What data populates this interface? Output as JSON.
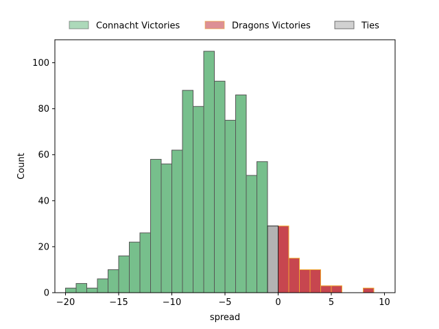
{
  "chart_data": {
    "type": "bar",
    "subtype": "histogram",
    "xlabel": "spread",
    "ylabel": "Count",
    "xlim": [
      -21,
      11
    ],
    "ylim": [
      0,
      110
    ],
    "xticks": [
      -20,
      -15,
      -10,
      -5,
      0,
      5,
      10
    ],
    "yticks": [
      0,
      20,
      40,
      60,
      80,
      100
    ],
    "grid": false,
    "legend_position": "top-center, outside",
    "bin_width": 1,
    "series": [
      {
        "name": "Connacht Victories",
        "color": "#77bf8c",
        "edge_color": "#555555",
        "bins": [
          [
            -20,
            2
          ],
          [
            -19,
            4
          ],
          [
            -18,
            2
          ],
          [
            -17,
            6
          ],
          [
            -16,
            10
          ],
          [
            -15,
            16
          ],
          [
            -14,
            22
          ],
          [
            -13,
            26
          ],
          [
            -12,
            58
          ],
          [
            -11,
            56
          ],
          [
            -10,
            62
          ],
          [
            -9,
            88
          ],
          [
            -8,
            81
          ],
          [
            -7,
            105
          ],
          [
            -6,
            92
          ],
          [
            -5,
            75
          ],
          [
            -4,
            86
          ],
          [
            -3,
            51
          ],
          [
            -2,
            57
          ]
        ]
      },
      {
        "name": "Dragons Victories",
        "color": "#c7464f",
        "edge_color": "#f0a830",
        "bins": [
          [
            0,
            29
          ],
          [
            1,
            15
          ],
          [
            2,
            10
          ],
          [
            3,
            10
          ],
          [
            4,
            3
          ],
          [
            5,
            3
          ],
          [
            8,
            2
          ]
        ]
      },
      {
        "name": "Ties",
        "color": "#b3b3b3",
        "edge_color": "#222222",
        "bins": [
          [
            -1,
            29
          ]
        ]
      }
    ]
  }
}
